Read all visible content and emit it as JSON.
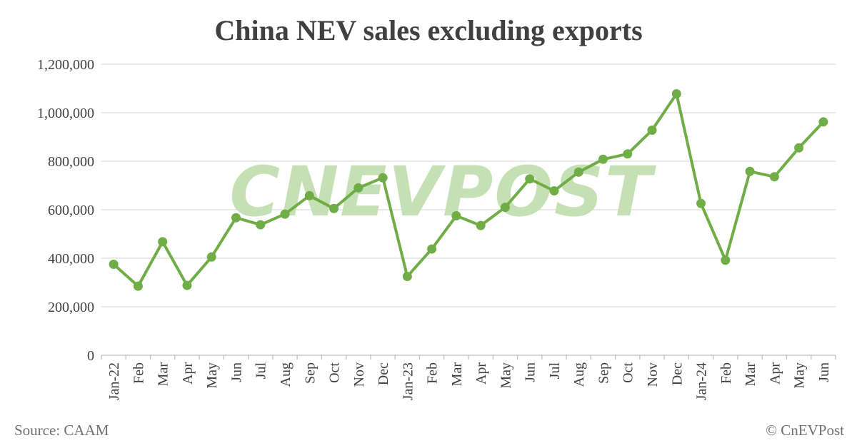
{
  "chart_data": {
    "type": "line",
    "title": "China NEV sales excluding exports",
    "categories": [
      "Jan-22",
      "Feb",
      "Mar",
      "Apr",
      "May",
      "Jun",
      "Jul",
      "Aug",
      "Sep",
      "Oct",
      "Nov",
      "Dec",
      "Jan-23",
      "Feb",
      "Mar",
      "Apr",
      "May",
      "Jun",
      "Jul",
      "Aug",
      "Sep",
      "Oct",
      "Nov",
      "Dec",
      "Jan-24",
      "Feb",
      "Mar",
      "Apr",
      "May",
      "Jun"
    ],
    "series": [
      {
        "values": [
          375000,
          285000,
          468000,
          288000,
          405000,
          567000,
          538000,
          582000,
          658000,
          605000,
          690000,
          732000,
          325000,
          438000,
          575000,
          535000,
          610000,
          727000,
          678000,
          755000,
          808000,
          830000,
          928000,
          1078000,
          626000,
          392000,
          758000,
          736000,
          855000,
          962000
        ],
        "color": "#70ad47"
      }
    ],
    "y_ticks": [
      0,
      200000,
      400000,
      600000,
      800000,
      1000000,
      1200000
    ],
    "y_tick_labels": [
      "0",
      "200,000",
      "400,000",
      "600,000",
      "800,000",
      "1,000,000",
      "1,200,000"
    ],
    "ylim": [
      0,
      1200000
    ],
    "grid": true,
    "legend": "none",
    "xlabel": "",
    "ylabel": ""
  },
  "source": "Source: CAAM",
  "copyright": "© CnEVPost",
  "watermark": "CNEVPOST",
  "colors": {
    "series": "#70ad47",
    "watermark": "#c5e0b4",
    "text": "#404040",
    "grid": "#d9d9d9"
  }
}
